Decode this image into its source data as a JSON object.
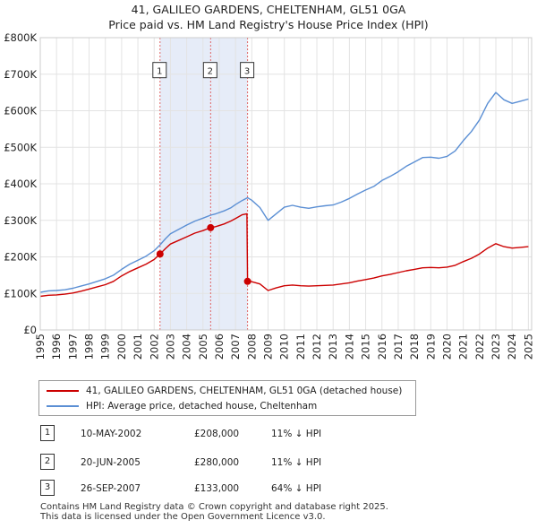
{
  "chart_data": {
    "type": "line",
    "title": "41, GALILEO GARDENS, CHELTENHAM, GL51 0GA",
    "subtitle": "Price paid vs. HM Land Registry's House Price Index (HPI)",
    "xlabel": "",
    "ylabel": "",
    "xlim": [
      1995.0,
      2025.2
    ],
    "ylim": [
      0,
      800000
    ],
    "y_ticks": [
      {
        "value": 0,
        "label": "£0"
      },
      {
        "value": 100000,
        "label": "£100K"
      },
      {
        "value": 200000,
        "label": "£200K"
      },
      {
        "value": 300000,
        "label": "£300K"
      },
      {
        "value": 400000,
        "label": "£400K"
      },
      {
        "value": 500000,
        "label": "£500K"
      },
      {
        "value": 600000,
        "label": "£600K"
      },
      {
        "value": 700000,
        "label": "£700K"
      },
      {
        "value": 800000,
        "label": "£800K"
      }
    ],
    "x_ticks": [
      "1995",
      "1996",
      "1997",
      "1998",
      "1999",
      "2000",
      "2001",
      "2002",
      "2003",
      "2004",
      "2005",
      "2006",
      "2007",
      "2008",
      "2009",
      "2010",
      "2011",
      "2012",
      "2013",
      "2014",
      "2015",
      "2016",
      "2017",
      "2018",
      "2019",
      "2020",
      "2021",
      "2022",
      "2023",
      "2024",
      "2025"
    ],
    "grid": true,
    "shaded_region": {
      "from": 2002.36,
      "to": 2007.74
    },
    "series": [
      {
        "name": "41, GALILEO GARDENS, CHELTENHAM, GL51 0GA (detached house)",
        "color": "#cc0000",
        "points": [
          [
            1995.0,
            92000
          ],
          [
            1995.5,
            95000
          ],
          [
            1996.0,
            96000
          ],
          [
            1996.5,
            98000
          ],
          [
            1997.0,
            101000
          ],
          [
            1997.5,
            106000
          ],
          [
            1998.0,
            112000
          ],
          [
            1998.5,
            118000
          ],
          [
            1999.0,
            124000
          ],
          [
            1999.5,
            133000
          ],
          [
            2000.0,
            148000
          ],
          [
            2000.5,
            160000
          ],
          [
            2001.0,
            170000
          ],
          [
            2001.5,
            180000
          ],
          [
            2002.0,
            193000
          ],
          [
            2002.36,
            208000
          ],
          [
            2002.7,
            223000
          ],
          [
            2003.0,
            235000
          ],
          [
            2003.5,
            245000
          ],
          [
            2004.0,
            255000
          ],
          [
            2004.5,
            265000
          ],
          [
            2005.0,
            272000
          ],
          [
            2005.47,
            280000
          ],
          [
            2005.8,
            283000
          ],
          [
            2006.3,
            290000
          ],
          [
            2006.7,
            298000
          ],
          [
            2007.0,
            305000
          ],
          [
            2007.4,
            315000
          ],
          [
            2007.7,
            318000
          ],
          [
            2007.74,
            133000
          ],
          [
            2008.0,
            132000
          ],
          [
            2008.5,
            126000
          ],
          [
            2009.0,
            108000
          ],
          [
            2009.5,
            115000
          ],
          [
            2010.0,
            121000
          ],
          [
            2010.5,
            123000
          ],
          [
            2011.0,
            121000
          ],
          [
            2011.5,
            120000
          ],
          [
            2012.0,
            121000
          ],
          [
            2012.5,
            122000
          ],
          [
            2013.0,
            123000
          ],
          [
            2013.5,
            126000
          ],
          [
            2014.0,
            129000
          ],
          [
            2014.5,
            134000
          ],
          [
            2015.0,
            138000
          ],
          [
            2015.5,
            142000
          ],
          [
            2016.0,
            148000
          ],
          [
            2016.5,
            152000
          ],
          [
            2017.0,
            157000
          ],
          [
            2017.5,
            162000
          ],
          [
            2018.0,
            166000
          ],
          [
            2018.5,
            170000
          ],
          [
            2019.0,
            171000
          ],
          [
            2019.5,
            170000
          ],
          [
            2020.0,
            172000
          ],
          [
            2020.5,
            177000
          ],
          [
            2021.0,
            187000
          ],
          [
            2021.5,
            196000
          ],
          [
            2022.0,
            208000
          ],
          [
            2022.5,
            224000
          ],
          [
            2023.0,
            236000
          ],
          [
            2023.5,
            228000
          ],
          [
            2024.0,
            224000
          ],
          [
            2024.5,
            226000
          ],
          [
            2025.0,
            228000
          ]
        ]
      },
      {
        "name": "HPI: Average price, detached house, Cheltenham",
        "color": "#5b8fd4",
        "points": [
          [
            1995.0,
            103000
          ],
          [
            1995.5,
            107000
          ],
          [
            1996.0,
            108000
          ],
          [
            1996.5,
            110000
          ],
          [
            1997.0,
            114000
          ],
          [
            1997.5,
            120000
          ],
          [
            1998.0,
            126000
          ],
          [
            1998.5,
            133000
          ],
          [
            1999.0,
            140000
          ],
          [
            1999.5,
            150000
          ],
          [
            2000.0,
            166000
          ],
          [
            2000.5,
            180000
          ],
          [
            2001.0,
            191000
          ],
          [
            2001.5,
            202000
          ],
          [
            2002.0,
            217000
          ],
          [
            2002.36,
            233000
          ],
          [
            2002.7,
            250000
          ],
          [
            2003.0,
            263000
          ],
          [
            2003.5,
            275000
          ],
          [
            2004.0,
            287000
          ],
          [
            2004.5,
            298000
          ],
          [
            2005.0,
            306000
          ],
          [
            2005.47,
            314000
          ],
          [
            2005.8,
            318000
          ],
          [
            2006.3,
            326000
          ],
          [
            2006.7,
            334000
          ],
          [
            2007.0,
            343000
          ],
          [
            2007.4,
            354000
          ],
          [
            2007.74,
            362000
          ],
          [
            2008.0,
            355000
          ],
          [
            2008.5,
            335000
          ],
          [
            2009.0,
            300000
          ],
          [
            2009.5,
            318000
          ],
          [
            2010.0,
            336000
          ],
          [
            2010.5,
            341000
          ],
          [
            2011.0,
            336000
          ],
          [
            2011.5,
            333000
          ],
          [
            2012.0,
            337000
          ],
          [
            2012.5,
            340000
          ],
          [
            2013.0,
            342000
          ],
          [
            2013.5,
            350000
          ],
          [
            2014.0,
            360000
          ],
          [
            2014.5,
            372000
          ],
          [
            2015.0,
            383000
          ],
          [
            2015.5,
            393000
          ],
          [
            2016.0,
            409000
          ],
          [
            2016.5,
            420000
          ],
          [
            2017.0,
            433000
          ],
          [
            2017.5,
            448000
          ],
          [
            2018.0,
            460000
          ],
          [
            2018.5,
            472000
          ],
          [
            2019.0,
            473000
          ],
          [
            2019.5,
            470000
          ],
          [
            2020.0,
            475000
          ],
          [
            2020.5,
            490000
          ],
          [
            2021.0,
            518000
          ],
          [
            2021.5,
            543000
          ],
          [
            2022.0,
            575000
          ],
          [
            2022.5,
            620000
          ],
          [
            2023.0,
            650000
          ],
          [
            2023.5,
            630000
          ],
          [
            2024.0,
            620000
          ],
          [
            2024.5,
            626000
          ],
          [
            2025.0,
            632000
          ]
        ]
      }
    ],
    "sales": [
      {
        "id": "1",
        "x": 2002.36,
        "price": 208000
      },
      {
        "id": "2",
        "x": 2005.47,
        "price": 280000
      },
      {
        "id": "3",
        "x": 2007.74,
        "price": 133000
      }
    ]
  },
  "legend": {
    "property_label": "41, GALILEO GARDENS, CHELTENHAM, GL51 0GA (detached house)",
    "hpi_label": "HPI: Average price, detached house, Cheltenham",
    "property_color": "#cc0000",
    "hpi_color": "#5b8fd4"
  },
  "transactions": [
    {
      "num": "1",
      "date": "10-MAY-2002",
      "price": "£208,000",
      "hpi": "11% ↓ HPI"
    },
    {
      "num": "2",
      "date": "20-JUN-2005",
      "price": "£280,000",
      "hpi": "11% ↓ HPI"
    },
    {
      "num": "3",
      "date": "26-SEP-2007",
      "price": "£133,000",
      "hpi": "64% ↓ HPI"
    }
  ],
  "footer": {
    "line1": "Contains HM Land Registry data © Crown copyright and database right 2025.",
    "line2": "This data is licensed under the Open Government Licence v3.0."
  }
}
